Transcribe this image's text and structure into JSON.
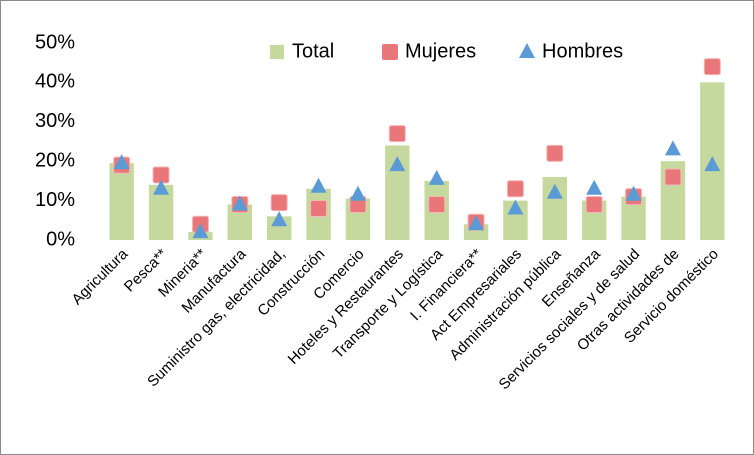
{
  "chart_data": {
    "type": "bar",
    "categories": [
      "Agricultura",
      "Pesca**",
      "Mineria**",
      "Manufactura",
      "Suministro gas, electricidad,",
      "Construcción",
      "Comercio",
      "Hoteles y Restaurantes",
      "Transporte y Logística",
      "I. Financiera**",
      "Act Empresariales",
      "Administración pública",
      "Enseñanza",
      "Servicios sociales y de salud",
      "Otras actividades de",
      "Servicio doméstico"
    ],
    "series": [
      {
        "name": "Total",
        "color": "#c5d99e",
        "marker": "bar",
        "values": [
          19.5,
          14,
          2,
          9,
          6,
          13,
          10.5,
          24,
          15,
          4,
          10,
          16,
          10,
          11,
          20,
          40
        ]
      },
      {
        "name": "Mujeres",
        "color": "#e9777a",
        "marker": "square",
        "values": [
          19,
          16.5,
          4,
          9,
          9.5,
          8,
          9,
          27,
          9,
          4.5,
          13,
          22,
          9,
          11,
          16,
          44
        ]
      },
      {
        "name": "Hombres",
        "color": "#5b9bd5",
        "marker": "triangle",
        "values": [
          19.5,
          13,
          2,
          9,
          5,
          13.5,
          11.5,
          19,
          15.5,
          4,
          8,
          12,
          13,
          11.5,
          23,
          19
        ]
      }
    ],
    "ylim": [
      0,
      50
    ],
    "yticks": [
      {
        "value": 0,
        "label": "0%"
      },
      {
        "value": 10,
        "label": "10%"
      },
      {
        "value": 20,
        "label": "20%"
      },
      {
        "value": 30,
        "label": "30%"
      },
      {
        "value": 40,
        "label": "40%"
      },
      {
        "value": 50,
        "label": "50%"
      }
    ],
    "legend": "top",
    "grid": false
  }
}
